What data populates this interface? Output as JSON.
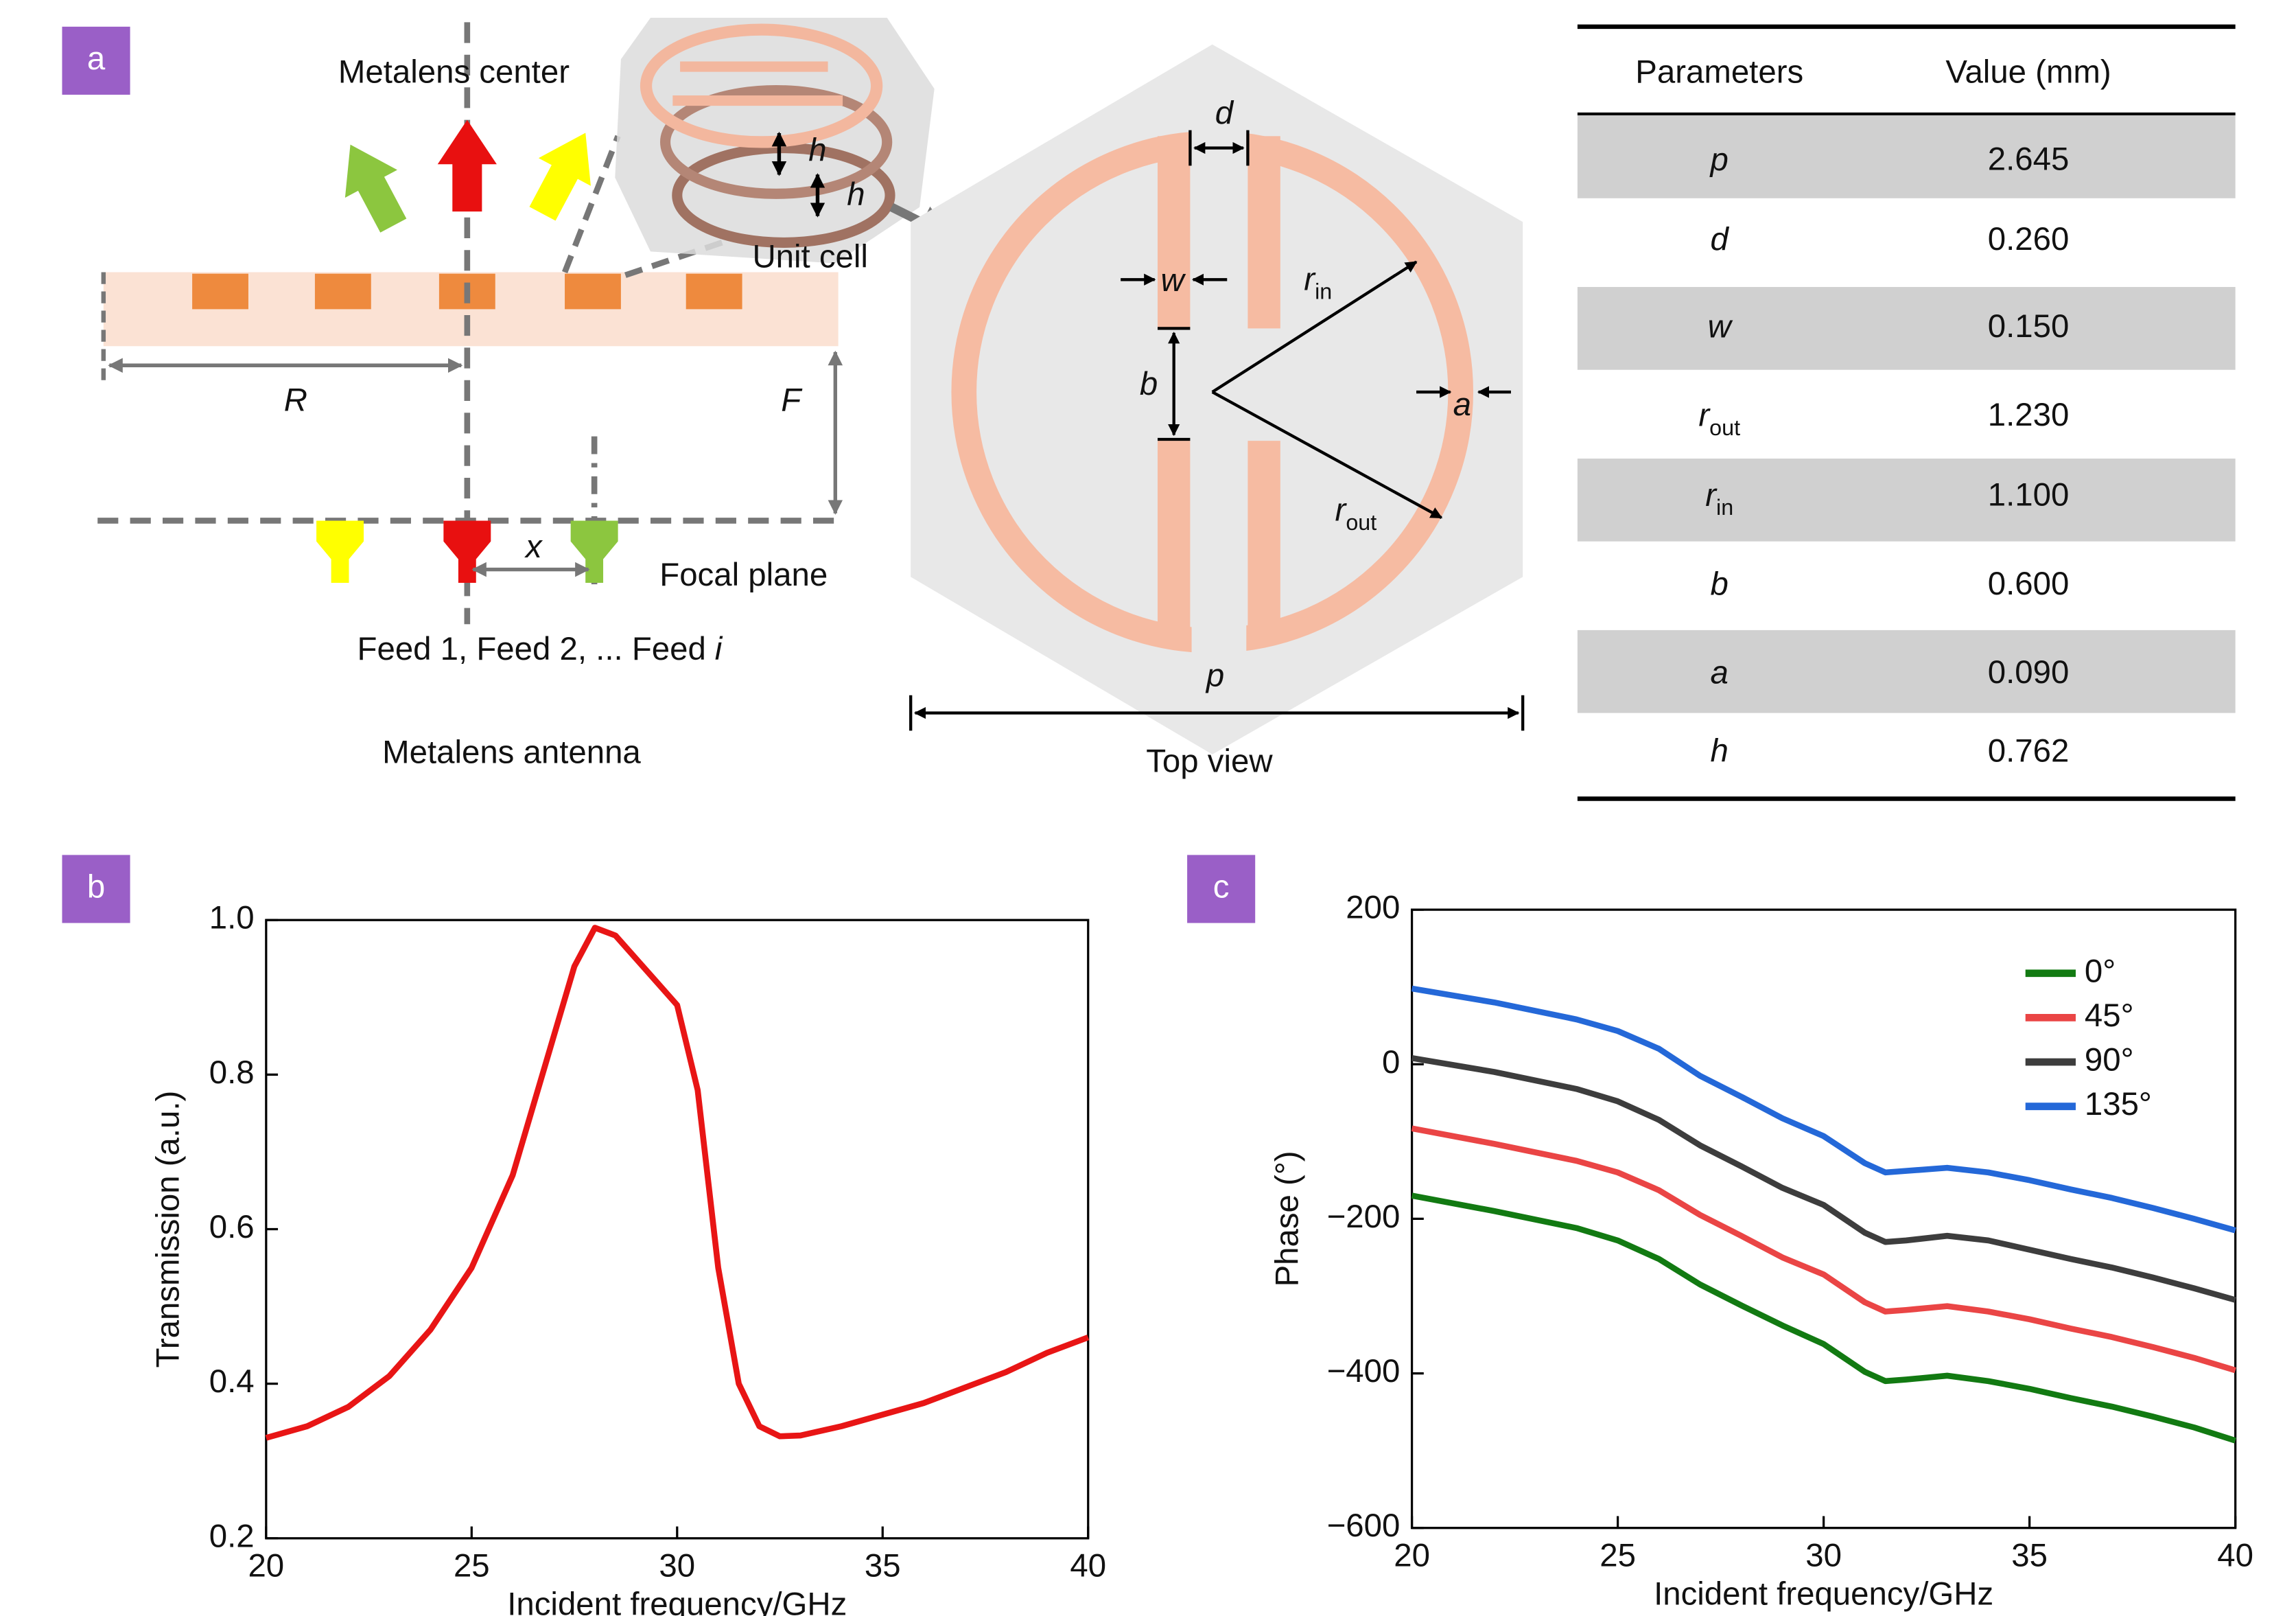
{
  "panel_labels": [
    "a",
    "b",
    "c"
  ],
  "diagram": {
    "metalens_center": "Metalens center",
    "unit_cell": "Unit cell",
    "h": [
      "h",
      "h"
    ],
    "R": "R",
    "F": "F",
    "x": "x",
    "focal_plane": "Focal plane",
    "feeds": {
      "text": "Feed 1, Feed 2, ... Feed",
      "italic": "i"
    },
    "caption": "Metalens antenna",
    "top_view": {
      "d": "d",
      "w": "w",
      "b": "b",
      "a": "a",
      "r_in": {
        "symbol": "r",
        "sub": "in"
      },
      "r_out": {
        "symbol": "r",
        "sub": "out"
      },
      "p": "p",
      "caption": "Top view"
    }
  },
  "table": {
    "header": [
      "Parameters",
      "Value (mm)"
    ],
    "rows": [
      {
        "symbol": "p",
        "value": "2.645"
      },
      {
        "symbol": "d",
        "value": "0.260"
      },
      {
        "symbol": "w",
        "value": "0.150"
      },
      {
        "symbol": "r",
        "sub": "out",
        "value": "1.230"
      },
      {
        "symbol": "r",
        "sub": "in",
        "value": "1.100"
      },
      {
        "symbol": "b",
        "value": "0.600"
      },
      {
        "symbol": "a",
        "value": "0.090"
      },
      {
        "symbol": "h",
        "value": "0.762"
      }
    ]
  },
  "chart_data": [
    {
      "type": "line",
      "xlabel": "Incident frequency/GHz",
      "ylabel": "Transmission (a.u.)",
      "color": "#e81515",
      "x": [
        20,
        21,
        22,
        23,
        24,
        25,
        26,
        27,
        27.5,
        28,
        28.5,
        29,
        29.5,
        30,
        30.5,
        31,
        31.5,
        32,
        32.5,
        33,
        34,
        35,
        36,
        37,
        38,
        39,
        40
      ],
      "values": [
        0.33,
        0.345,
        0.37,
        0.41,
        0.47,
        0.55,
        0.67,
        0.85,
        0.94,
        0.99,
        0.98,
        0.95,
        0.92,
        0.89,
        0.78,
        0.55,
        0.4,
        0.345,
        0.332,
        0.333,
        0.345,
        0.36,
        0.375,
        0.395,
        0.415,
        0.44,
        0.46
      ],
      "xlim": [
        20,
        40
      ],
      "xticks": [
        20,
        25,
        30,
        35,
        40
      ],
      "ylim": [
        0.2,
        1
      ],
      "yticks": [
        0.2,
        0.4,
        0.6,
        0.8,
        {
          "value": 1,
          "label": "1.0"
        }
      ],
      "grid": false
    },
    {
      "type": "line",
      "xlabel": "Incident frequency/GHz",
      "ylabel": "Phase (°)",
      "legend": "upper right",
      "x": [
        20,
        22,
        24,
        25,
        26,
        27,
        28,
        29,
        30,
        31,
        31.5,
        32,
        33,
        34,
        35,
        36,
        37,
        38,
        39,
        40
      ],
      "series": [
        {
          "name": "0°",
          "color": "#127a12",
          "values": [
            -170,
            -190,
            -212,
            -228,
            -252,
            -285,
            -312,
            -338,
            -362,
            -398,
            -410,
            -408,
            -403,
            -410,
            -420,
            -432,
            -443,
            -456,
            -470,
            -487
          ]
        },
        {
          "name": "45°",
          "color": "#ea4545",
          "values": [
            -83,
            -103,
            -125,
            -140,
            -163,
            -195,
            -222,
            -250,
            -272,
            -308,
            -320,
            -318,
            -313,
            -320,
            -330,
            -342,
            -353,
            -366,
            -380,
            -396
          ]
        },
        {
          "name": "90°",
          "color": "#3d3d3d",
          "values": [
            8,
            -10,
            -32,
            -48,
            -72,
            -105,
            -132,
            -160,
            -182,
            -218,
            -230,
            -228,
            -222,
            -228,
            -240,
            -252,
            -263,
            -276,
            -290,
            -305
          ]
        },
        {
          "name": "135°",
          "color": "#2468d8",
          "values": [
            98,
            80,
            58,
            43,
            20,
            -15,
            -42,
            -70,
            -93,
            -128,
            -140,
            -138,
            -134,
            -140,
            -150,
            -162,
            -173,
            -186,
            -200,
            -215
          ]
        }
      ],
      "xlim": [
        20,
        40
      ],
      "xticks": [
        20,
        25,
        30,
        35,
        40
      ],
      "ylim": [
        -600,
        200
      ],
      "yticks": [
        {
          "value": -600,
          "label": "−600"
        },
        {
          "value": -400,
          "label": "−400"
        },
        {
          "value": -200,
          "label": "−200"
        },
        0,
        200
      ],
      "grid": false
    }
  ]
}
